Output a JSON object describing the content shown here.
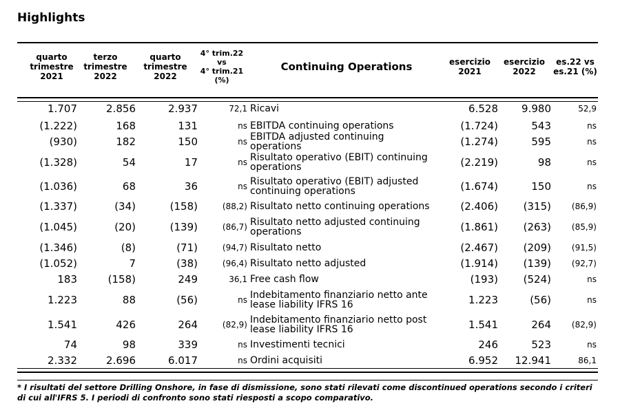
{
  "header": {
    "title": "Highlights"
  },
  "table": {
    "columns": [
      "quarto\ntrimestre\n2021",
      "terzo\ntrimestre\n2022",
      "quarto\ntrimestre\n2022",
      "4° trim.22\nvs\n4° trim.21\n(%)",
      "Continuing Operations",
      "esercizio\n2021",
      "esercizio\n2022",
      "es.22 vs\nes.21 (%)"
    ],
    "rows": [
      [
        "1.707",
        "2.856",
        "2.937",
        "72,1",
        "Ricavi",
        "6.528",
        "9.980",
        "52,9"
      ],
      [
        "(1.222)",
        "168",
        "131",
        "ns",
        "EBITDA continuing operations",
        "(1.724)",
        "543",
        "ns"
      ],
      [
        "(930)",
        "182",
        "150",
        "ns",
        "EBITDA adjusted continuing operations",
        "(1.274)",
        "595",
        "ns"
      ],
      [
        "(1.328)",
        "54",
        "17",
        "ns",
        "Risultato operativo (EBIT) continuing operations",
        "(2.219)",
        "98",
        "ns"
      ],
      [
        "(1.036)",
        "68",
        "36",
        "ns",
        "Risultato operativo (EBIT) adjusted continuing operations",
        "(1.674)",
        "150",
        "ns"
      ],
      [
        "(1.337)",
        "(34)",
        "(158)",
        "(88,2)",
        "Risultato netto continuing operations",
        "(2.406)",
        "(315)",
        "(86,9)"
      ],
      [
        "(1.045)",
        "(20)",
        "(139)",
        "(86,7)",
        "Risultato netto adjusted continuing operations",
        "(1.861)",
        "(263)",
        "(85,9)"
      ],
      [
        "(1.346)",
        "(8)",
        "(71)",
        "(94,7)",
        "Risultato netto",
        "(2.467)",
        "(209)",
        "(91,5)"
      ],
      [
        "(1.052)",
        "7",
        "(38)",
        "(96,4)",
        "Risultato netto adjusted",
        "(1.914)",
        "(139)",
        "(92,7)"
      ],
      [
        "183",
        "(158)",
        "249",
        "36,1",
        "Free cash flow",
        "(193)",
        "(524)",
        "ns"
      ],
      [
        "1.223",
        "88",
        "(56)",
        "ns",
        "Indebitamento finanziario netto ante lease liability IFRS 16",
        "1.223",
        "(56)",
        "ns"
      ],
      [
        "1.541",
        "426",
        "264",
        "(82,9)",
        "Indebitamento finanziario netto post lease liability IFRS 16",
        "1.541",
        "264",
        "(82,9)"
      ],
      [
        "74",
        "98",
        "339",
        "ns",
        "Investimenti tecnici",
        "246",
        "523",
        "ns"
      ],
      [
        "2.332",
        "2.696",
        "6.017",
        "ns",
        "Ordini acquisiti",
        "6.952",
        "12.941",
        "86,1"
      ]
    ]
  },
  "footnote": "* I risultati del settore Drilling Onshore, in fase di dismissione, sono stati rilevati come discontinued operations secondo i criteri di cui all'IFRS 5. I periodi di confronto sono stati riesposti a scopo comparativo."
}
